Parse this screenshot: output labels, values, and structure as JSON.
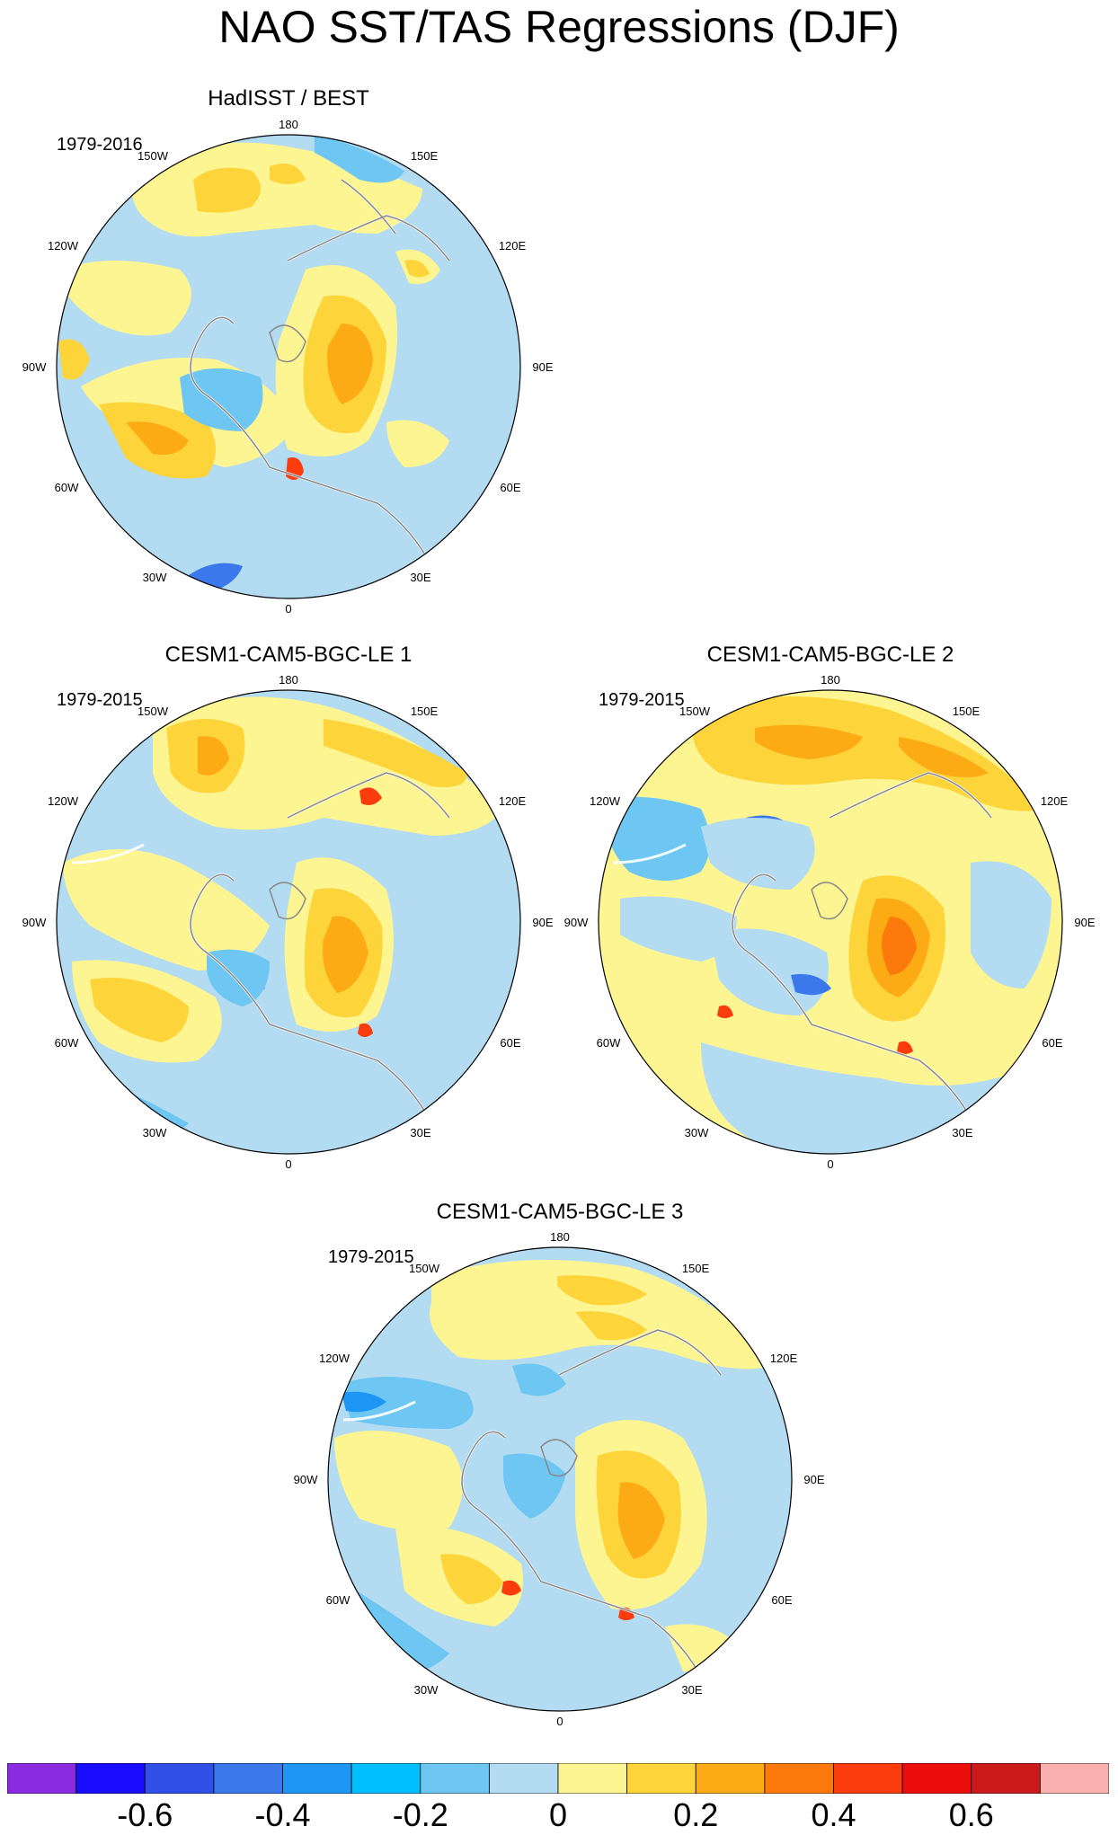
{
  "title": "NAO SST/TAS Regressions (DJF)",
  "colors": {
    "ocean_neutral_neg": "#b3dcf2",
    "land_outline": "#ffffff",
    "coast_outline": "#888888"
  },
  "colorbar": {
    "colors": [
      "#8a2be2",
      "#1a0dff",
      "#3050e8",
      "#3a78eb",
      "#1e96f5",
      "#00bfff",
      "#6ec6f2",
      "#b3dcf2",
      "#fdf591",
      "#fdd43a",
      "#fdab14",
      "#fc7a0c",
      "#fc3c0c",
      "#ec0d0d",
      "#cc1a1a",
      "#fbb0b0"
    ],
    "tick_labels": [
      "-0.6",
      "-0.4",
      "-0.2",
      "0",
      "0.2",
      "0.4",
      "0.6"
    ]
  },
  "panels": [
    {
      "title": "HadISST / BEST",
      "period": "1979-2016",
      "lon_labels": {
        "n180": "180",
        "w150": "150W",
        "e150": "150E",
        "w120": "120W",
        "e120": "120E",
        "w90": "90W",
        "e90": "90E",
        "w60": "60W",
        "e60": "60E",
        "w30": "30W",
        "e30": "30E",
        "z0": "0"
      }
    },
    {
      "title": "CESM1-CAM5-BGC-LE 1",
      "period": "1979-2015",
      "lon_labels": {
        "n180": "180",
        "w150": "150W",
        "e150": "150E",
        "w120": "120W",
        "e120": "120E",
        "w90": "90W",
        "e90": "90E",
        "w60": "60W",
        "e60": "60E",
        "w30": "30W",
        "e30": "30E",
        "z0": "0"
      }
    },
    {
      "title": "CESM1-CAM5-BGC-LE 2",
      "period": "1979-2015",
      "lon_labels": {
        "n180": "180",
        "w150": "150W",
        "e150": "150E",
        "w120": "120W",
        "e120": "120E",
        "w90": "90W",
        "e90": "90E",
        "w60": "60W",
        "e60": "60E",
        "w30": "30W",
        "e30": "30E",
        "z0": "0"
      }
    },
    {
      "title": "CESM1-CAM5-BGC-LE 3",
      "period": "1979-2015",
      "lon_labels": {
        "n180": "180",
        "w150": "150W",
        "e150": "150E",
        "w120": "120W",
        "e120": "120E",
        "w90": "90W",
        "e90": "90E",
        "w60": "60W",
        "e60": "60E",
        "w30": "30W",
        "e30": "30E",
        "z0": "0"
      }
    }
  ]
}
